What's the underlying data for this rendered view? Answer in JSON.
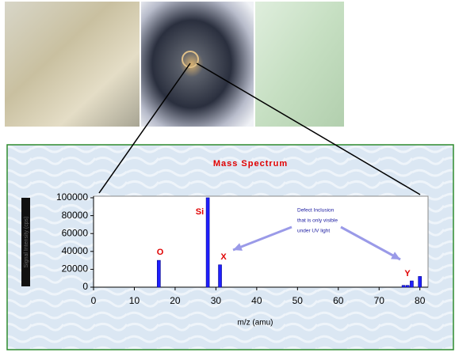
{
  "chart_data": {
    "type": "bar",
    "title": "Mass Spectrum",
    "x": [
      16,
      28,
      31,
      76,
      77,
      78,
      80
    ],
    "values": [
      30000,
      100000,
      25000,
      2000,
      2000,
      7000,
      12000
    ],
    "color": "#1f1fff",
    "xlim": [
      0,
      82
    ],
    "xticks": [
      0,
      10,
      20,
      30,
      40,
      50,
      60,
      70,
      80
    ],
    "ylim": [
      0,
      100000
    ],
    "yticks": [
      0,
      20000,
      40000,
      60000,
      80000,
      100000
    ],
    "x_label": "m/z (amu)",
    "y_label": "Signal Intensity (cps)",
    "peak_labels": [
      "O",
      "Si",
      "X",
      "Y"
    ],
    "annotation": [
      "Defect Inclusion",
      "that is only visible",
      "under UV light"
    ],
    "grid": false
  }
}
